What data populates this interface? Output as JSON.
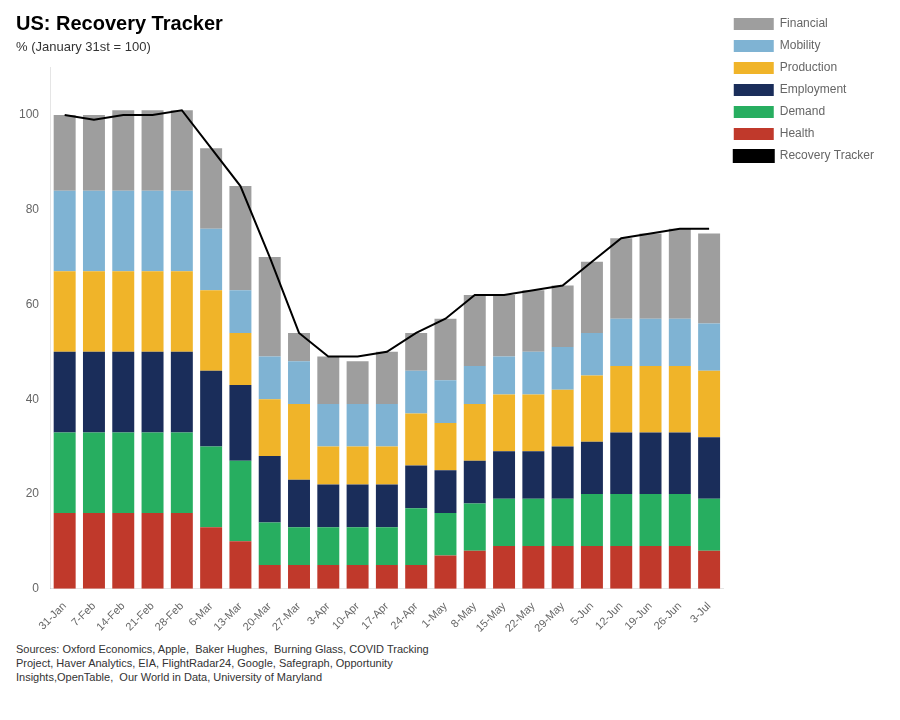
{
  "chart_data": {
    "type": "bar",
    "title": "US: Recovery Tracker",
    "subtitle": "% (January 31st = 100)",
    "source": "Sources: Oxford Economics, Apple,  Baker Hughes,  Burning Glass, COVID Tracking\nProject, Haver Analytics, EIA, FlightRadar24, Google, Safegraph, Opportunity\nInsights,OpenTable,  Our World in Data, University of Maryland",
    "categories": [
      "31-Jan",
      "7-Feb",
      "14-Feb",
      "21-Feb",
      "28-Feb",
      "6-Mar",
      "13-Mar",
      "20-Mar",
      "27-Mar",
      "3-Apr",
      "10-Apr",
      "17-Apr",
      "24-Apr",
      "1-May",
      "8-May",
      "15-May",
      "22-May",
      "29-May",
      "5-Jun",
      "12-Jun",
      "19-Jun",
      "26-Jun",
      "3-Jul"
    ],
    "series": [
      {
        "name": "Health",
        "color": "#c0392b",
        "values": [
          16,
          16,
          16,
          16,
          16,
          13,
          10,
          5,
          5,
          5,
          5,
          5,
          5,
          7,
          8,
          9,
          9,
          9,
          9,
          9,
          9,
          9,
          8
        ]
      },
      {
        "name": "Demand",
        "color": "#27ae60",
        "values": [
          17,
          17,
          17,
          17,
          17,
          17,
          17,
          9,
          8,
          8,
          8,
          8,
          12,
          9,
          10,
          10,
          10,
          10,
          11,
          11,
          11,
          11,
          11
        ]
      },
      {
        "name": "Employment",
        "color": "#1a2d5a",
        "values": [
          17,
          17,
          17,
          17,
          17,
          16,
          16,
          14,
          10,
          9,
          9,
          9,
          9,
          9,
          9,
          10,
          10,
          11,
          11,
          13,
          13,
          13,
          13
        ]
      },
      {
        "name": "Production",
        "color": "#f0b429",
        "values": [
          17,
          17,
          17,
          17,
          17,
          17,
          11,
          12,
          16,
          8,
          8,
          8,
          11,
          10,
          12,
          12,
          12,
          12,
          14,
          14,
          14,
          14,
          14
        ]
      },
      {
        "name": "Mobility",
        "color": "#7fb3d3",
        "values": [
          17,
          17,
          17,
          17,
          17,
          13,
          9,
          9,
          9,
          9,
          9,
          9,
          9,
          9,
          8,
          8,
          9,
          9,
          9,
          10,
          10,
          10,
          10
        ]
      },
      {
        "name": "Financial",
        "color": "#9e9e9e",
        "values": [
          16,
          16,
          17,
          17,
          17,
          17,
          22,
          21,
          6,
          10,
          9,
          11,
          8,
          13,
          15,
          13,
          13,
          13,
          15,
          17,
          18,
          19,
          19
        ]
      },
      {
        "name": "Recovery Tracker",
        "type": "line",
        "color": "#000000",
        "values": [
          100,
          99,
          100,
          100,
          101,
          93,
          85,
          70,
          54,
          49,
          49,
          50,
          54,
          57,
          62,
          62,
          63,
          64,
          69,
          74,
          75,
          76,
          76
        ]
      }
    ],
    "ylim": [
      0,
      110
    ],
    "yticks": [
      0,
      20,
      40,
      60,
      80,
      100
    ],
    "stacked": true,
    "grid": false,
    "legend": "right"
  }
}
